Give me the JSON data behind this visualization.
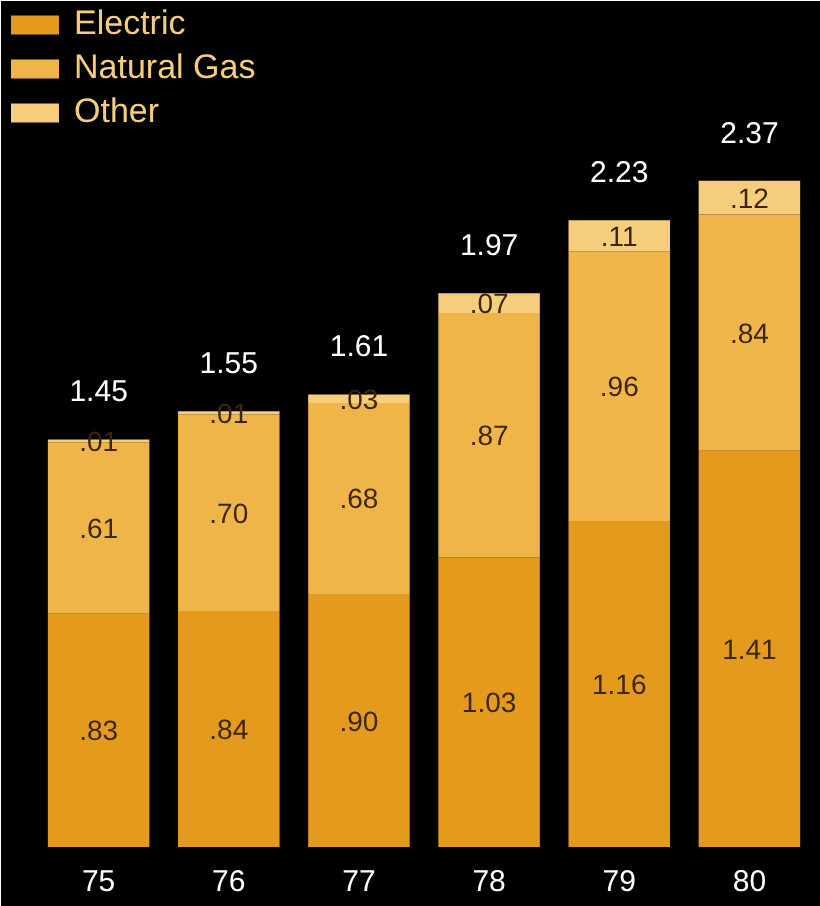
{
  "chart_data": {
    "type": "bar",
    "stacked": true,
    "categories": [
      "75",
      "76",
      "77",
      "78",
      "79",
      "80"
    ],
    "series": [
      {
        "name": "Electric",
        "color": "#e49a1c",
        "values": [
          0.83,
          0.84,
          0.9,
          1.03,
          1.16,
          1.41
        ],
        "value_labels": [
          ".83",
          ".84",
          ".90",
          "1.03",
          "1.16",
          "1.41"
        ]
      },
      {
        "name": "Natural Gas",
        "color": "#efb548",
        "values": [
          0.61,
          0.7,
          0.68,
          0.87,
          0.96,
          0.84
        ],
        "value_labels": [
          ".61",
          ".70",
          ".68",
          ".87",
          ".96",
          ".84"
        ]
      },
      {
        "name": "Other",
        "color": "#f6cd7a",
        "values": [
          0.01,
          0.01,
          0.03,
          0.07,
          0.11,
          0.12
        ],
        "value_labels": [
          ".01",
          ".01",
          ".03",
          ".07",
          ".11",
          ".12"
        ]
      }
    ],
    "totals": [
      "1.45",
      "1.55",
      "1.61",
      "1.97",
      "2.23",
      "2.37"
    ],
    "legend": "top left",
    "grid": false
  }
}
